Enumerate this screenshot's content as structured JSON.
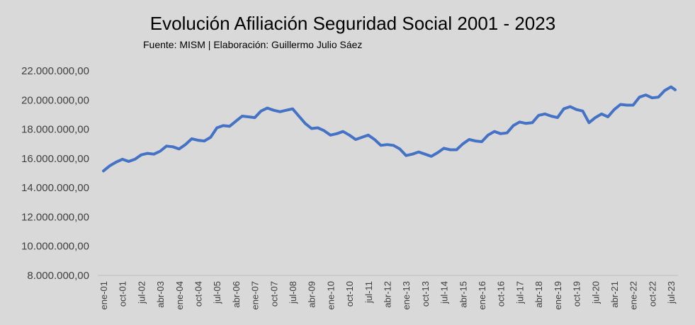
{
  "chart_data": {
    "type": "line",
    "title": "Evolución Afiliación Seguridad Social 2001 - 2023",
    "subtitle": "Fuente: MISM | Elaboración: Guillermo Julio Sáez",
    "xlabel": "",
    "ylabel": "",
    "ylim": [
      8000000,
      22000000
    ],
    "y_ticks": [
      "22.000.000,00",
      "20.000.000,00",
      "18.000.000,00",
      "16.000.000,00",
      "14.000.000,00",
      "12.000.000,00",
      "10.000.000,00",
      "8.000.000,00"
    ],
    "x_tick_labels": [
      "ene-01",
      "oct-01",
      "jul-02",
      "abr-03",
      "ene-04",
      "oct-04",
      "jul-05",
      "abr-06",
      "ene-07",
      "oct-07",
      "jul-08",
      "abr-09",
      "ene-10",
      "oct-10",
      "jul-11",
      "abr-12",
      "ene-13",
      "oct-13",
      "jul-14",
      "abr-15",
      "ene-16",
      "oct-16",
      "jul-17",
      "abr-18",
      "ene-19",
      "oct-19",
      "jul-20",
      "abr-21",
      "ene-22",
      "oct-22",
      "jul-23"
    ],
    "grid": false,
    "legend": "none",
    "color": "#4472c4",
    "series": [
      {
        "x": [
          "ene-01",
          "abr-01",
          "jul-01",
          "oct-01",
          "ene-02",
          "abr-02",
          "jul-02",
          "oct-02",
          "ene-03",
          "abr-03",
          "jul-03",
          "oct-03",
          "ene-04",
          "abr-04",
          "jul-04",
          "oct-04",
          "ene-05",
          "abr-05",
          "jul-05",
          "oct-05",
          "ene-06",
          "abr-06",
          "jul-06",
          "oct-06",
          "ene-07",
          "abr-07",
          "jul-07",
          "oct-07",
          "ene-08",
          "abr-08",
          "jul-08",
          "oct-08",
          "ene-09",
          "abr-09",
          "jul-09",
          "oct-09",
          "ene-10",
          "abr-10",
          "jul-10",
          "oct-10",
          "ene-11",
          "abr-11",
          "jul-11",
          "oct-11",
          "ene-12",
          "abr-12",
          "jul-12",
          "oct-12",
          "ene-13",
          "abr-13",
          "jul-13",
          "oct-13",
          "ene-14",
          "abr-14",
          "jul-14",
          "oct-14",
          "ene-15",
          "abr-15",
          "jul-15",
          "oct-15",
          "ene-16",
          "abr-16",
          "jul-16",
          "oct-16",
          "ene-17",
          "abr-17",
          "jul-17",
          "oct-17",
          "ene-18",
          "abr-18",
          "jul-18",
          "oct-18",
          "ene-19",
          "abr-19",
          "jul-19",
          "oct-19",
          "ene-20",
          "abr-20",
          "jul-20",
          "oct-20",
          "ene-21",
          "abr-21",
          "jul-21",
          "oct-21",
          "ene-22",
          "abr-22",
          "jul-22",
          "oct-22",
          "ene-23",
          "abr-23",
          "jul-23",
          "sep-23"
        ],
        "values": [
          15150000,
          15500000,
          15750000,
          15950000,
          15800000,
          15950000,
          16250000,
          16350000,
          16300000,
          16500000,
          16850000,
          16800000,
          16650000,
          16950000,
          17350000,
          17250000,
          17200000,
          17450000,
          18100000,
          18250000,
          18200000,
          18550000,
          18900000,
          18850000,
          18800000,
          19250000,
          19450000,
          19300000,
          19200000,
          19300000,
          19400000,
          18900000,
          18400000,
          18050000,
          18100000,
          17900000,
          17600000,
          17700000,
          17850000,
          17600000,
          17300000,
          17450000,
          17600000,
          17300000,
          16900000,
          16950000,
          16900000,
          16650000,
          16200000,
          16300000,
          16450000,
          16300000,
          16150000,
          16400000,
          16700000,
          16600000,
          16600000,
          17000000,
          17300000,
          17200000,
          17150000,
          17600000,
          17850000,
          17700000,
          17750000,
          18250000,
          18500000,
          18400000,
          18450000,
          18950000,
          19050000,
          18900000,
          18800000,
          19400000,
          19550000,
          19350000,
          19250000,
          18450000,
          18800000,
          19050000,
          18850000,
          19350000,
          19700000,
          19650000,
          19650000,
          20200000,
          20350000,
          20150000,
          20200000,
          20650000,
          20900000,
          20700000
        ]
      }
    ]
  }
}
